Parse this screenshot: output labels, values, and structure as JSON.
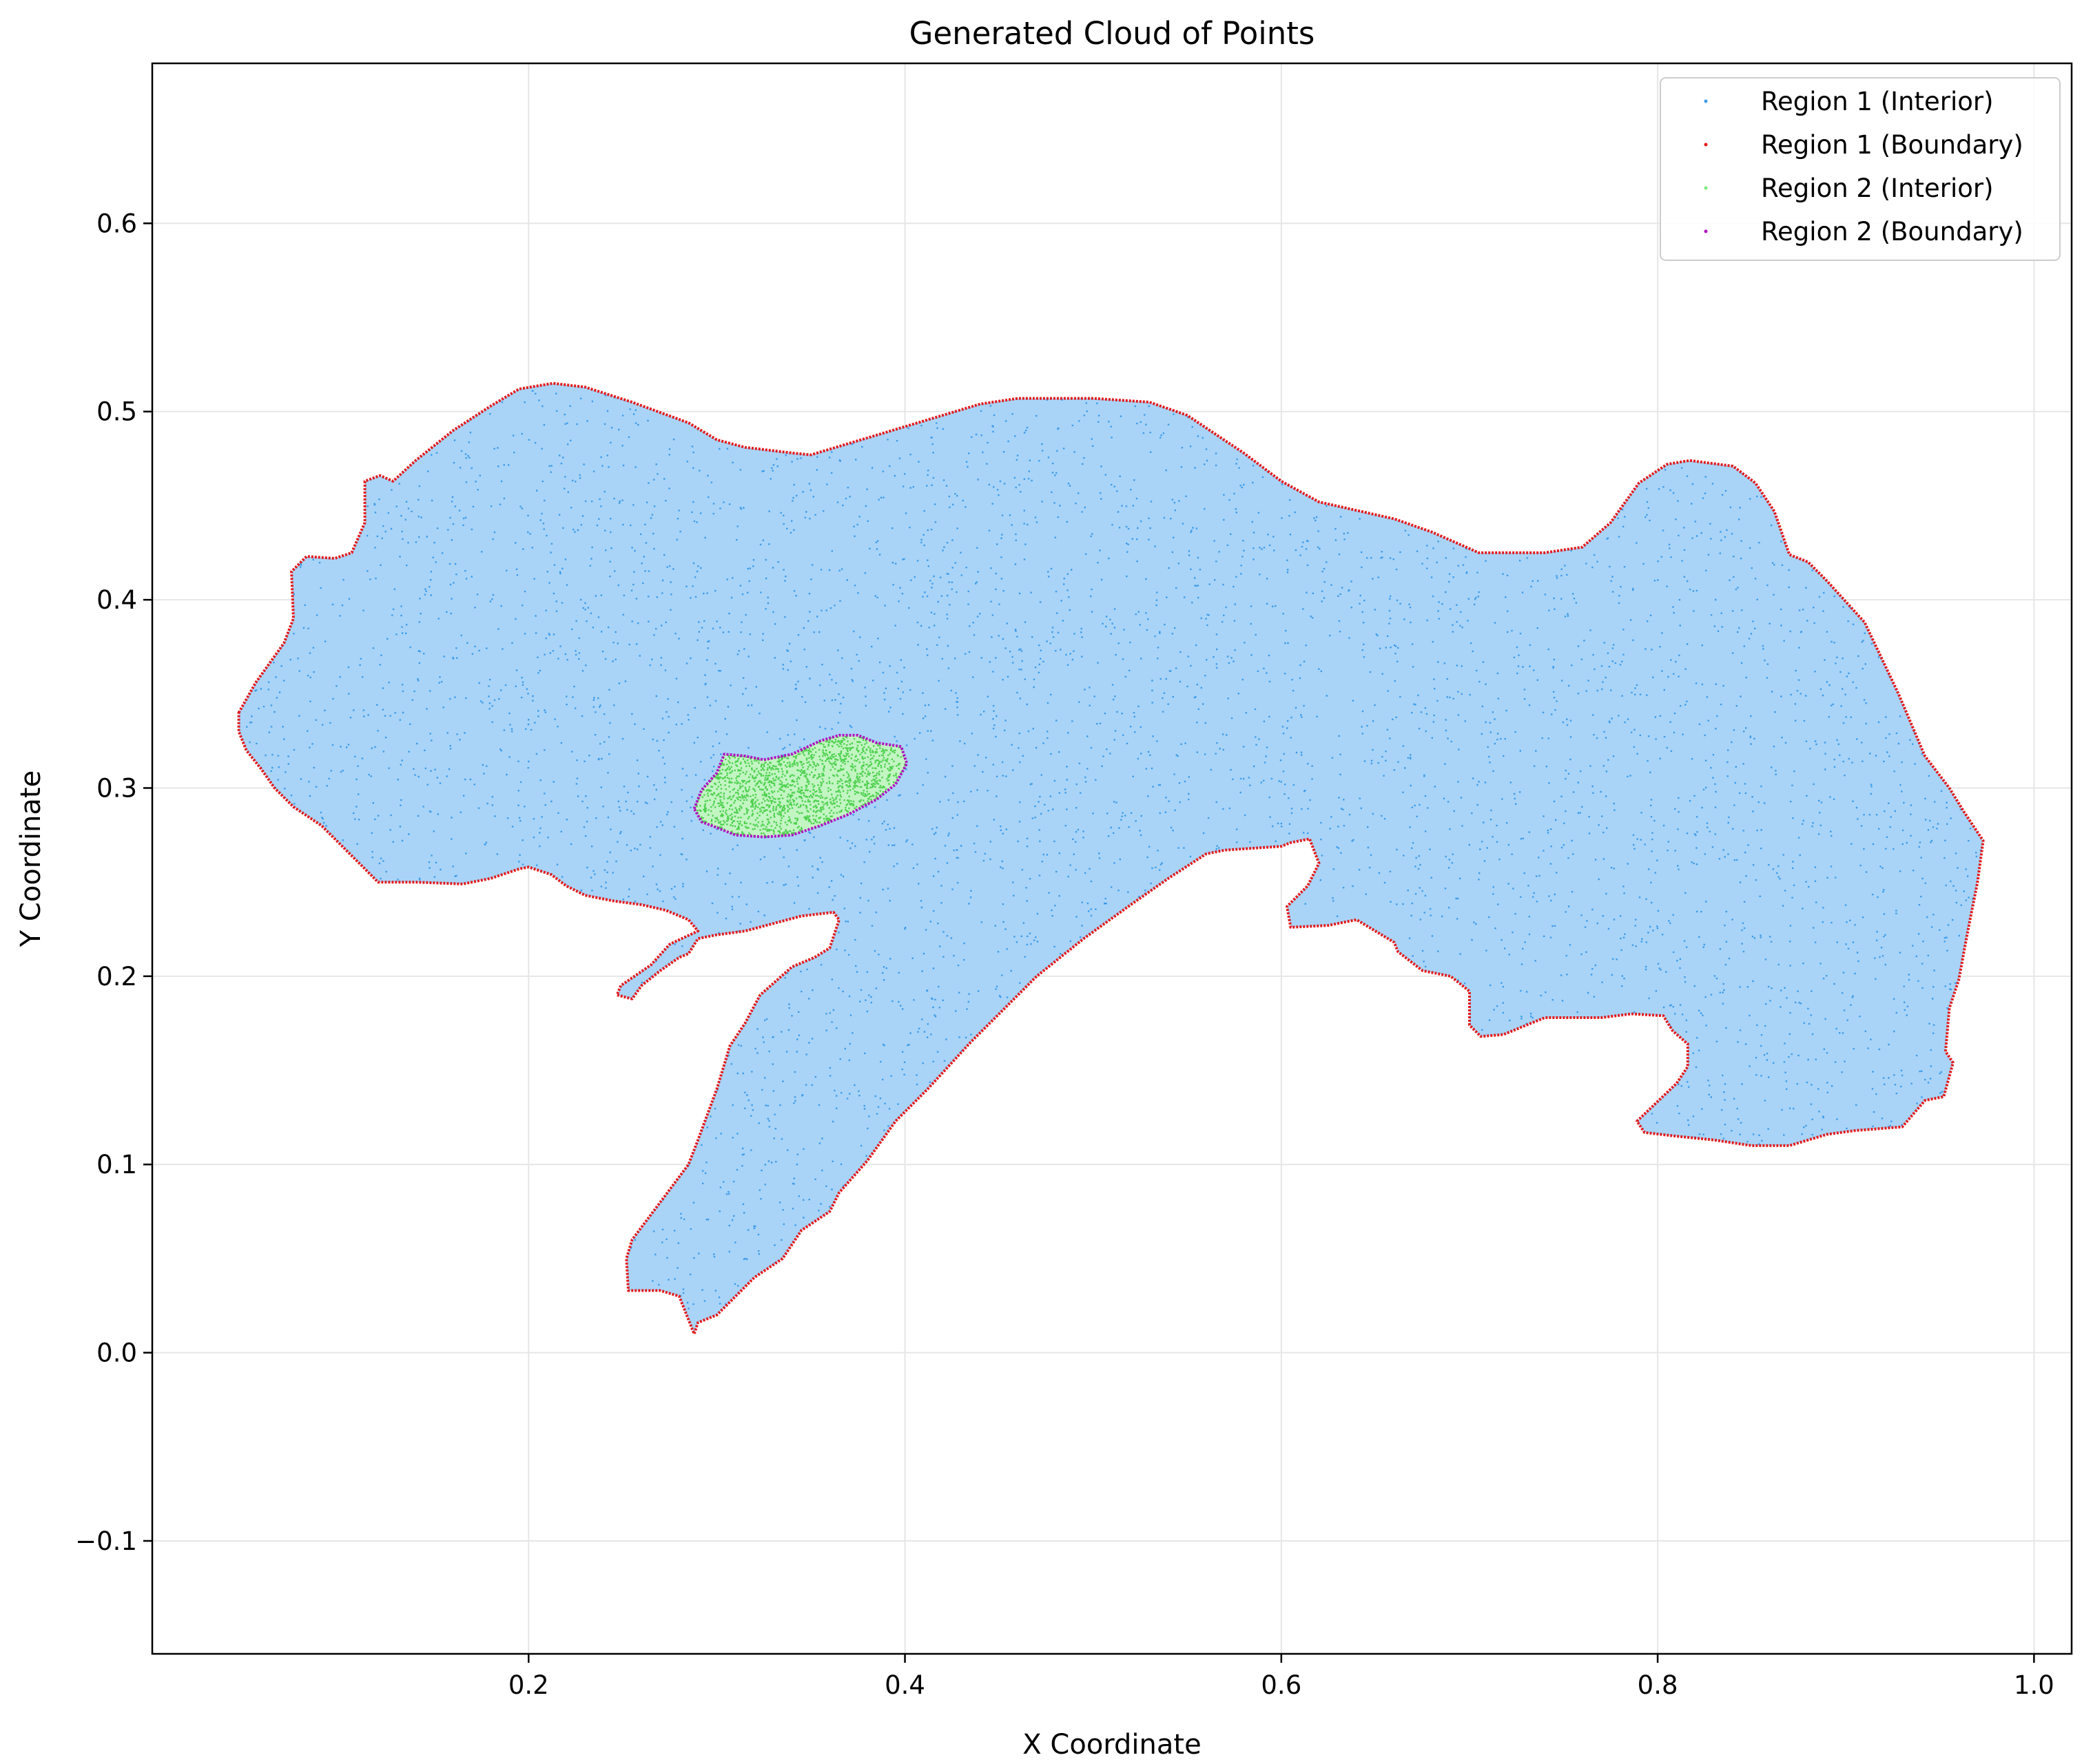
{
  "chart_data": {
    "type": "scatter",
    "title": "Generated Cloud of Points",
    "xlabel": "X Coordinate",
    "ylabel": "Y Coordinate",
    "xlim": [
      0.0,
      1.02
    ],
    "ylim": [
      -0.16,
      0.685
    ],
    "x_ticks": [
      {
        "value": 0.2,
        "label": "0.2"
      },
      {
        "value": 0.4,
        "label": "0.4"
      },
      {
        "value": 0.6,
        "label": "0.6"
      },
      {
        "value": 0.8,
        "label": "0.8"
      },
      {
        "value": 1.0,
        "label": "1.0"
      }
    ],
    "y_ticks": [
      {
        "value": -0.1,
        "label": "−0.1"
      },
      {
        "value": 0.0,
        "label": "0.0"
      },
      {
        "value": 0.1,
        "label": "0.1"
      },
      {
        "value": 0.2,
        "label": "0.2"
      },
      {
        "value": 0.3,
        "label": "0.3"
      },
      {
        "value": 0.4,
        "label": "0.4"
      },
      {
        "value": 0.5,
        "label": "0.5"
      },
      {
        "value": 0.6,
        "label": "0.6"
      }
    ],
    "grid": true,
    "legend_position": "top-right",
    "series": [
      {
        "name": "Region 1 (Interior)",
        "color": "#3d9be9",
        "role": "interior-fill",
        "region_polygon": [
          [
            0.046,
            0.34
          ],
          [
            0.055,
            0.356
          ],
          [
            0.07,
            0.377
          ],
          [
            0.075,
            0.39
          ],
          [
            0.074,
            0.415
          ],
          [
            0.082,
            0.423
          ],
          [
            0.097,
            0.422
          ],
          [
            0.106,
            0.425
          ],
          [
            0.113,
            0.441
          ],
          [
            0.113,
            0.463
          ],
          [
            0.121,
            0.466
          ],
          [
            0.128,
            0.463
          ],
          [
            0.14,
            0.474
          ],
          [
            0.16,
            0.49
          ],
          [
            0.18,
            0.503
          ],
          [
            0.195,
            0.512
          ],
          [
            0.213,
            0.515
          ],
          [
            0.23,
            0.513
          ],
          [
            0.255,
            0.505
          ],
          [
            0.285,
            0.494
          ],
          [
            0.3,
            0.485
          ],
          [
            0.315,
            0.481
          ],
          [
            0.34,
            0.478
          ],
          [
            0.35,
            0.477
          ],
          [
            0.38,
            0.486
          ],
          [
            0.41,
            0.495
          ],
          [
            0.44,
            0.504
          ],
          [
            0.46,
            0.507
          ],
          [
            0.5,
            0.507
          ],
          [
            0.53,
            0.505
          ],
          [
            0.55,
            0.498
          ],
          [
            0.58,
            0.478
          ],
          [
            0.6,
            0.463
          ],
          [
            0.62,
            0.452
          ],
          [
            0.66,
            0.443
          ],
          [
            0.68,
            0.436
          ],
          [
            0.705,
            0.425
          ],
          [
            0.74,
            0.425
          ],
          [
            0.76,
            0.428
          ],
          [
            0.775,
            0.441
          ],
          [
            0.79,
            0.462
          ],
          [
            0.805,
            0.472
          ],
          [
            0.817,
            0.474
          ],
          [
            0.84,
            0.471
          ],
          [
            0.852,
            0.462
          ],
          [
            0.862,
            0.447
          ],
          [
            0.87,
            0.424
          ],
          [
            0.88,
            0.42
          ],
          [
            0.89,
            0.41
          ],
          [
            0.91,
            0.388
          ],
          [
            0.928,
            0.35
          ],
          [
            0.942,
            0.317
          ],
          [
            0.955,
            0.3
          ],
          [
            0.963,
            0.287
          ],
          [
            0.973,
            0.272
          ],
          [
            0.97,
            0.25
          ],
          [
            0.965,
            0.225
          ],
          [
            0.96,
            0.198
          ],
          [
            0.955,
            0.183
          ],
          [
            0.953,
            0.16
          ],
          [
            0.957,
            0.154
          ],
          [
            0.952,
            0.136
          ],
          [
            0.942,
            0.134
          ],
          [
            0.93,
            0.12
          ],
          [
            0.905,
            0.118
          ],
          [
            0.89,
            0.116
          ],
          [
            0.87,
            0.11
          ],
          [
            0.85,
            0.11
          ],
          [
            0.83,
            0.113
          ],
          [
            0.81,
            0.115
          ],
          [
            0.793,
            0.117
          ],
          [
            0.789,
            0.123
          ],
          [
            0.81,
            0.143
          ],
          [
            0.816,
            0.152
          ],
          [
            0.816,
            0.164
          ],
          [
            0.808,
            0.171
          ],
          [
            0.803,
            0.179
          ],
          [
            0.786,
            0.18
          ],
          [
            0.77,
            0.178
          ],
          [
            0.74,
            0.178
          ],
          [
            0.718,
            0.169
          ],
          [
            0.706,
            0.168
          ],
          [
            0.7,
            0.174
          ],
          [
            0.7,
            0.192
          ],
          [
            0.69,
            0.2
          ],
          [
            0.675,
            0.203
          ],
          [
            0.662,
            0.213
          ],
          [
            0.66,
            0.218
          ],
          [
            0.64,
            0.23
          ],
          [
            0.625,
            0.227
          ],
          [
            0.605,
            0.226
          ],
          [
            0.603,
            0.237
          ],
          [
            0.608,
            0.242
          ],
          [
            0.614,
            0.248
          ],
          [
            0.62,
            0.26
          ],
          [
            0.615,
            0.273
          ],
          [
            0.605,
            0.271
          ],
          [
            0.6,
            0.269
          ],
          [
            0.57,
            0.267
          ],
          [
            0.56,
            0.265
          ],
          [
            0.54,
            0.252
          ],
          [
            0.52,
            0.238
          ],
          [
            0.495,
            0.22
          ],
          [
            0.47,
            0.2
          ],
          [
            0.455,
            0.185
          ],
          [
            0.435,
            0.165
          ],
          [
            0.412,
            0.14
          ],
          [
            0.395,
            0.123
          ],
          [
            0.38,
            0.102
          ],
          [
            0.365,
            0.085
          ],
          [
            0.36,
            0.075
          ],
          [
            0.345,
            0.065
          ],
          [
            0.335,
            0.05
          ],
          [
            0.32,
            0.04
          ],
          [
            0.305,
            0.025
          ],
          [
            0.3,
            0.02
          ],
          [
            0.29,
            0.016
          ],
          [
            0.288,
            0.01
          ],
          [
            0.28,
            0.03
          ],
          [
            0.27,
            0.033
          ],
          [
            0.262,
            0.033
          ],
          [
            0.253,
            0.033
          ],
          [
            0.252,
            0.05
          ],
          [
            0.255,
            0.06
          ],
          [
            0.27,
            0.08
          ],
          [
            0.285,
            0.1
          ],
          [
            0.29,
            0.113
          ],
          [
            0.3,
            0.14
          ],
          [
            0.307,
            0.163
          ],
          [
            0.315,
            0.175
          ],
          [
            0.323,
            0.19
          ],
          [
            0.34,
            0.205
          ],
          [
            0.352,
            0.21
          ],
          [
            0.36,
            0.215
          ],
          [
            0.365,
            0.23
          ],
          [
            0.362,
            0.234
          ],
          [
            0.345,
            0.232
          ],
          [
            0.33,
            0.228
          ],
          [
            0.315,
            0.224
          ],
          [
            0.3,
            0.222
          ],
          [
            0.29,
            0.22
          ],
          [
            0.285,
            0.212
          ],
          [
            0.28,
            0.21
          ],
          [
            0.27,
            0.203
          ],
          [
            0.26,
            0.195
          ],
          [
            0.255,
            0.188
          ],
          [
            0.247,
            0.19
          ],
          [
            0.249,
            0.195
          ],
          [
            0.265,
            0.206
          ],
          [
            0.275,
            0.217
          ],
          [
            0.29,
            0.224
          ],
          [
            0.285,
            0.23
          ],
          [
            0.273,
            0.235
          ],
          [
            0.26,
            0.238
          ],
          [
            0.245,
            0.24
          ],
          [
            0.23,
            0.243
          ],
          [
            0.22,
            0.248
          ],
          [
            0.212,
            0.254
          ],
          [
            0.2,
            0.258
          ],
          [
            0.195,
            0.257
          ],
          [
            0.18,
            0.252
          ],
          [
            0.165,
            0.249
          ],
          [
            0.14,
            0.25
          ],
          [
            0.12,
            0.25
          ],
          [
            0.11,
            0.26
          ],
          [
            0.1,
            0.27
          ],
          [
            0.09,
            0.28
          ],
          [
            0.075,
            0.29
          ],
          [
            0.065,
            0.3
          ],
          [
            0.058,
            0.31
          ],
          [
            0.05,
            0.32
          ],
          [
            0.046,
            0.33
          ]
        ]
      },
      {
        "name": "Region 1 (Boundary)",
        "color": "#e31a1c",
        "role": "outline-of-region-1"
      },
      {
        "name": "Region 2 (Interior)",
        "color": "#7ee87e",
        "role": "interior-fill",
        "region_polygon": [
          [
            0.288,
            0.289
          ],
          [
            0.292,
            0.299
          ],
          [
            0.3,
            0.308
          ],
          [
            0.304,
            0.318
          ],
          [
            0.315,
            0.317
          ],
          [
            0.325,
            0.315
          ],
          [
            0.34,
            0.318
          ],
          [
            0.355,
            0.325
          ],
          [
            0.365,
            0.328
          ],
          [
            0.375,
            0.328
          ],
          [
            0.385,
            0.324
          ],
          [
            0.398,
            0.322
          ],
          [
            0.401,
            0.313
          ],
          [
            0.395,
            0.302
          ],
          [
            0.385,
            0.294
          ],
          [
            0.37,
            0.286
          ],
          [
            0.355,
            0.28
          ],
          [
            0.34,
            0.275
          ],
          [
            0.325,
            0.274
          ],
          [
            0.31,
            0.275
          ],
          [
            0.3,
            0.279
          ],
          [
            0.292,
            0.282
          ]
        ]
      },
      {
        "name": "Region 2 (Boundary)",
        "color": "#b010c0",
        "role": "outline-of-region-2"
      }
    ]
  }
}
